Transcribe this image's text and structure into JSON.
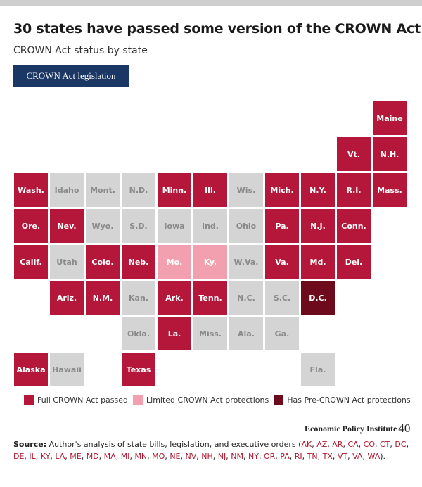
{
  "title": "30 states have passed some version of the CROWN Act",
  "subtitle": "CROWN Act status by state",
  "tab": {
    "label": "CROWN Act legislation"
  },
  "colors": {
    "full": "#b5173a",
    "limited": "#f2a0b0",
    "pre": "#6d0a1c",
    "none": "#d4d4d4",
    "text_light": "#ffffff",
    "text_dark": "#8a8a8a",
    "text_limited": "#ffffff",
    "tab_bg": "#1b3764"
  },
  "chart_data": {
    "type": "tile-map",
    "title": "30 states have passed some version of the CROWN Act",
    "subtitle": "CROWN Act status by state",
    "categories": {
      "full": "Full CROWN Act passed",
      "limited": "Limited CROWN Act protections",
      "pre": "Has Pre-CROWN Act protections",
      "none": ""
    },
    "states": [
      {
        "label": "Maine",
        "row": 0,
        "col": 10,
        "status": "full"
      },
      {
        "label": "Vt.",
        "row": 1,
        "col": 9,
        "status": "full"
      },
      {
        "label": "N.H.",
        "row": 1,
        "col": 10,
        "status": "full"
      },
      {
        "label": "Wash.",
        "row": 2,
        "col": 0,
        "status": "full"
      },
      {
        "label": "Idaho",
        "row": 2,
        "col": 1,
        "status": "none"
      },
      {
        "label": "Mont.",
        "row": 2,
        "col": 2,
        "status": "none"
      },
      {
        "label": "N.D.",
        "row": 2,
        "col": 3,
        "status": "none"
      },
      {
        "label": "Minn.",
        "row": 2,
        "col": 4,
        "status": "full"
      },
      {
        "label": "Ill.",
        "row": 2,
        "col": 5,
        "status": "full"
      },
      {
        "label": "Wis.",
        "row": 2,
        "col": 6,
        "status": "none"
      },
      {
        "label": "Mich.",
        "row": 2,
        "col": 7,
        "status": "full"
      },
      {
        "label": "N.Y.",
        "row": 2,
        "col": 8,
        "status": "full"
      },
      {
        "label": "R.I.",
        "row": 2,
        "col": 9,
        "status": "full"
      },
      {
        "label": "Mass.",
        "row": 2,
        "col": 10,
        "status": "full"
      },
      {
        "label": "Ore.",
        "row": 3,
        "col": 0,
        "status": "full"
      },
      {
        "label": "Nev.",
        "row": 3,
        "col": 1,
        "status": "full"
      },
      {
        "label": "Wyo.",
        "row": 3,
        "col": 2,
        "status": "none"
      },
      {
        "label": "S.D.",
        "row": 3,
        "col": 3,
        "status": "none"
      },
      {
        "label": "Iowa",
        "row": 3,
        "col": 4,
        "status": "none"
      },
      {
        "label": "Ind.",
        "row": 3,
        "col": 5,
        "status": "none"
      },
      {
        "label": "Ohio",
        "row": 3,
        "col": 6,
        "status": "none"
      },
      {
        "label": "Pa.",
        "row": 3,
        "col": 7,
        "status": "full"
      },
      {
        "label": "N.J.",
        "row": 3,
        "col": 8,
        "status": "full"
      },
      {
        "label": "Conn.",
        "row": 3,
        "col": 9,
        "status": "full"
      },
      {
        "label": "Calif.",
        "row": 4,
        "col": 0,
        "status": "full"
      },
      {
        "label": "Utah",
        "row": 4,
        "col": 1,
        "status": "none"
      },
      {
        "label": "Colo.",
        "row": 4,
        "col": 2,
        "status": "full"
      },
      {
        "label": "Neb.",
        "row": 4,
        "col": 3,
        "status": "full"
      },
      {
        "label": "Mo.",
        "row": 4,
        "col": 4,
        "status": "limited"
      },
      {
        "label": "Ky.",
        "row": 4,
        "col": 5,
        "status": "limited"
      },
      {
        "label": "W.Va.",
        "row": 4,
        "col": 6,
        "status": "none"
      },
      {
        "label": "Va.",
        "row": 4,
        "col": 7,
        "status": "full"
      },
      {
        "label": "Md.",
        "row": 4,
        "col": 8,
        "status": "full"
      },
      {
        "label": "Del.",
        "row": 4,
        "col": 9,
        "status": "full"
      },
      {
        "label": "Ariz.",
        "row": 5,
        "col": 1,
        "status": "full"
      },
      {
        "label": "N.M.",
        "row": 5,
        "col": 2,
        "status": "full"
      },
      {
        "label": "Kan.",
        "row": 5,
        "col": 3,
        "status": "none"
      },
      {
        "label": "Ark.",
        "row": 5,
        "col": 4,
        "status": "full"
      },
      {
        "label": "Tenn.",
        "row": 5,
        "col": 5,
        "status": "full"
      },
      {
        "label": "N.C.",
        "row": 5,
        "col": 6,
        "status": "none"
      },
      {
        "label": "S.C.",
        "row": 5,
        "col": 7,
        "status": "none"
      },
      {
        "label": "D.C.",
        "row": 5,
        "col": 8,
        "status": "pre"
      },
      {
        "label": "Okla.",
        "row": 6,
        "col": 3,
        "status": "none"
      },
      {
        "label": "La.",
        "row": 6,
        "col": 4,
        "status": "full"
      },
      {
        "label": "Miss.",
        "row": 6,
        "col": 5,
        "status": "none"
      },
      {
        "label": "Ala.",
        "row": 6,
        "col": 6,
        "status": "none"
      },
      {
        "label": "Ga.",
        "row": 6,
        "col": 7,
        "status": "none"
      },
      {
        "label": "Alaska",
        "row": 7,
        "col": 0,
        "status": "full"
      },
      {
        "label": "Hawaii",
        "row": 7,
        "col": 1,
        "status": "none"
      },
      {
        "label": "Texas",
        "row": 7,
        "col": 3,
        "status": "full"
      },
      {
        "label": "Fla.",
        "row": 7,
        "col": 8,
        "status": "none"
      }
    ]
  },
  "legend": [
    {
      "key": "full",
      "label": "Full CROWN Act passed"
    },
    {
      "key": "limited",
      "label": "Limited CROWN Act protections"
    },
    {
      "key": "pre",
      "label": "Has Pre-CROWN Act protections"
    }
  ],
  "logo": {
    "text": "Economic Policy Institute",
    "mark": "40"
  },
  "source": {
    "label": "Source:",
    "text": " Author's analysis of state bills, legislation, and executive orders (",
    "abbreviations": [
      "AK",
      "AZ",
      "AR",
      "CA",
      "CO",
      "CT",
      "DC",
      "DE",
      "IL",
      "KY",
      "LA",
      "ME",
      "MD",
      "MA",
      "MI",
      "MN",
      "MO",
      "NE",
      "NV",
      "NH",
      "NJ",
      "NM",
      "NY",
      "OR",
      "PA",
      "RI",
      "TN",
      "TX",
      "VT",
      "VA",
      "WA"
    ],
    "separator": ", ",
    "closing": ")."
  }
}
